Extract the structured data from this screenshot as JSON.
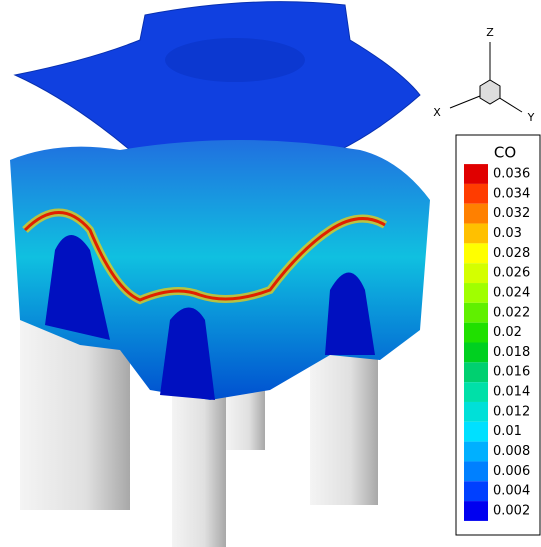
{
  "legend": {
    "title": "CO",
    "levels": [
      {
        "value": 0.036,
        "color": "#e00000"
      },
      {
        "value": 0.034,
        "color": "#ff3c00"
      },
      {
        "value": 0.032,
        "color": "#ff8000"
      },
      {
        "value": 0.03,
        "color": "#ffc000"
      },
      {
        "value": 0.028,
        "color": "#ffff00"
      },
      {
        "value": 0.026,
        "color": "#d4ff00"
      },
      {
        "value": 0.024,
        "color": "#a0ff00"
      },
      {
        "value": 0.022,
        "color": "#60f000"
      },
      {
        "value": 0.02,
        "color": "#20e000"
      },
      {
        "value": 0.018,
        "color": "#00d020"
      },
      {
        "value": 0.016,
        "color": "#00d070"
      },
      {
        "value": 0.014,
        "color": "#00e0a8"
      },
      {
        "value": 0.012,
        "color": "#00e0d8"
      },
      {
        "value": 0.01,
        "color": "#00e0ff"
      },
      {
        "value": 0.008,
        "color": "#00b0ff"
      },
      {
        "value": 0.006,
        "color": "#0080ff"
      },
      {
        "value": 0.004,
        "color": "#0040ff"
      },
      {
        "value": 0.002,
        "color": "#0000f0"
      }
    ]
  },
  "axes_triad": {
    "x": "X",
    "y": "Y",
    "z": "Z"
  }
}
